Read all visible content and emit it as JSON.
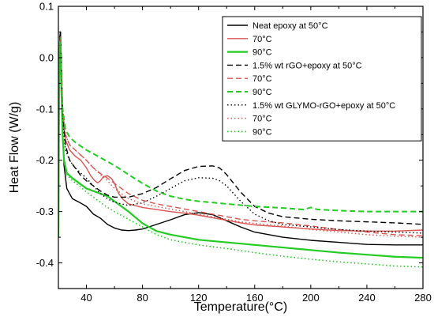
{
  "chart_data": {
    "type": "line",
    "title": "",
    "xlabel": "Temperature(°C)",
    "ylabel": "Heat Flow (W/g)",
    "xlim": [
      20,
      280
    ],
    "ylim": [
      -0.45,
      0.1
    ],
    "x_ticks": [
      40,
      80,
      120,
      160,
      200,
      240,
      280
    ],
    "x_tick_labels": [
      "40",
      "80",
      "120",
      "160",
      "200",
      "240",
      "280"
    ],
    "y_ticks": [
      0.1,
      0.0,
      -0.1,
      -0.2,
      -0.3,
      -0.4
    ],
    "y_tick_labels": [
      "0.1",
      "0.0",
      "-0.1",
      "-0.2",
      "-0.3",
      "-0.4"
    ],
    "grid": false,
    "legend_position": "top-right",
    "series": [
      {
        "name": "Neat epoxy at 50°C",
        "color": "#000000",
        "dash": "solid",
        "width": 1.4,
        "points": [
          [
            20,
            -0.35
          ],
          [
            20.5,
            -0.05
          ],
          [
            21,
            0.04
          ],
          [
            21.5,
            0.05
          ],
          [
            22,
            0.0
          ],
          [
            23,
            -0.14
          ],
          [
            24,
            -0.21
          ],
          [
            26,
            -0.255
          ],
          [
            30,
            -0.275
          ],
          [
            35,
            -0.282
          ],
          [
            40,
            -0.29
          ],
          [
            45,
            -0.305
          ],
          [
            50,
            -0.313
          ],
          [
            55,
            -0.325
          ],
          [
            60,
            -0.332
          ],
          [
            65,
            -0.336
          ],
          [
            70,
            -0.337
          ],
          [
            75,
            -0.336
          ],
          [
            80,
            -0.334
          ],
          [
            90,
            -0.325
          ],
          [
            100,
            -0.316
          ],
          [
            110,
            -0.306
          ],
          [
            120,
            -0.302
          ],
          [
            130,
            -0.306
          ],
          [
            140,
            -0.318
          ],
          [
            150,
            -0.33
          ],
          [
            160,
            -0.34
          ],
          [
            180,
            -0.35
          ],
          [
            200,
            -0.356
          ],
          [
            220,
            -0.36
          ],
          [
            240,
            -0.364
          ],
          [
            260,
            -0.365
          ],
          [
            280,
            -0.365
          ]
        ]
      },
      {
        "name": "70°C",
        "color": "#d9534f",
        "dash": "solid",
        "width": 1.4,
        "points": [
          [
            20,
            -0.35
          ],
          [
            20.5,
            -0.05
          ],
          [
            21,
            0.03
          ],
          [
            21.5,
            0.04
          ],
          [
            22,
            -0.02
          ],
          [
            23,
            -0.11
          ],
          [
            25,
            -0.16
          ],
          [
            28,
            -0.18
          ],
          [
            32,
            -0.192
          ],
          [
            36,
            -0.2
          ],
          [
            40,
            -0.215
          ],
          [
            43,
            -0.23
          ],
          [
            46,
            -0.24
          ],
          [
            48,
            -0.244
          ],
          [
            50,
            -0.24
          ],
          [
            52,
            -0.232
          ],
          [
            55,
            -0.23
          ],
          [
            58,
            -0.236
          ],
          [
            60,
            -0.245
          ],
          [
            63,
            -0.265
          ],
          [
            66,
            -0.276
          ],
          [
            70,
            -0.285
          ],
          [
            80,
            -0.292
          ],
          [
            90,
            -0.296
          ],
          [
            100,
            -0.3
          ],
          [
            110,
            -0.303
          ],
          [
            120,
            -0.307
          ],
          [
            130,
            -0.312
          ],
          [
            140,
            -0.317
          ],
          [
            150,
            -0.322
          ],
          [
            160,
            -0.326
          ],
          [
            180,
            -0.33
          ],
          [
            200,
            -0.334
          ],
          [
            220,
            -0.337
          ],
          [
            240,
            -0.338
          ],
          [
            260,
            -0.338
          ],
          [
            280,
            -0.336
          ]
        ]
      },
      {
        "name": "90°C",
        "color": "#22cc22",
        "dash": "solid",
        "width": 2.2,
        "points": [
          [
            20,
            -0.35
          ],
          [
            20.5,
            -0.05
          ],
          [
            21,
            0.02
          ],
          [
            21.5,
            0.03
          ],
          [
            22,
            -0.05
          ],
          [
            23,
            -0.15
          ],
          [
            24,
            -0.2
          ],
          [
            26,
            -0.225
          ],
          [
            30,
            -0.235
          ],
          [
            35,
            -0.245
          ],
          [
            40,
            -0.255
          ],
          [
            45,
            -0.26
          ],
          [
            50,
            -0.265
          ],
          [
            55,
            -0.27
          ],
          [
            60,
            -0.28
          ],
          [
            70,
            -0.3
          ],
          [
            80,
            -0.323
          ],
          [
            90,
            -0.338
          ],
          [
            100,
            -0.345
          ],
          [
            120,
            -0.355
          ],
          [
            140,
            -0.36
          ],
          [
            160,
            -0.365
          ],
          [
            180,
            -0.37
          ],
          [
            200,
            -0.375
          ],
          [
            220,
            -0.38
          ],
          [
            240,
            -0.384
          ],
          [
            260,
            -0.388
          ],
          [
            280,
            -0.39
          ]
        ]
      },
      {
        "name": "1.5% wt rGO+epoxy at 50°C",
        "color": "#000000",
        "dash": "7,4",
        "width": 1.4,
        "points": [
          [
            20,
            -0.35
          ],
          [
            20.5,
            -0.05
          ],
          [
            21,
            0.04
          ],
          [
            21.5,
            0.05
          ],
          [
            22,
            0.0
          ],
          [
            23,
            -0.1
          ],
          [
            25,
            -0.17
          ],
          [
            28,
            -0.2
          ],
          [
            32,
            -0.215
          ],
          [
            36,
            -0.23
          ],
          [
            40,
            -0.24
          ],
          [
            45,
            -0.25
          ],
          [
            50,
            -0.26
          ],
          [
            55,
            -0.268
          ],
          [
            60,
            -0.272
          ],
          [
            70,
            -0.272
          ],
          [
            80,
            -0.265
          ],
          [
            90,
            -0.253
          ],
          [
            100,
            -0.236
          ],
          [
            110,
            -0.22
          ],
          [
            120,
            -0.212
          ],
          [
            130,
            -0.211
          ],
          [
            135,
            -0.215
          ],
          [
            140,
            -0.228
          ],
          [
            150,
            -0.262
          ],
          [
            160,
            -0.29
          ],
          [
            170,
            -0.303
          ],
          [
            180,
            -0.31
          ],
          [
            200,
            -0.315
          ],
          [
            220,
            -0.318
          ],
          [
            240,
            -0.32
          ],
          [
            260,
            -0.322
          ],
          [
            280,
            -0.325
          ]
        ]
      },
      {
        "name": "70°C",
        "color": "#d9534f",
        "dash": "7,4",
        "width": 1.4,
        "points": [
          [
            20,
            -0.35
          ],
          [
            20.5,
            -0.05
          ],
          [
            21,
            0.03
          ],
          [
            21.5,
            0.04
          ],
          [
            22,
            -0.02
          ],
          [
            23,
            -0.1
          ],
          [
            25,
            -0.15
          ],
          [
            28,
            -0.17
          ],
          [
            32,
            -0.18
          ],
          [
            36,
            -0.19
          ],
          [
            40,
            -0.2
          ],
          [
            45,
            -0.215
          ],
          [
            50,
            -0.226
          ],
          [
            55,
            -0.235
          ],
          [
            60,
            -0.245
          ],
          [
            65,
            -0.255
          ],
          [
            70,
            -0.265
          ],
          [
            80,
            -0.278
          ],
          [
            90,
            -0.285
          ],
          [
            100,
            -0.29
          ],
          [
            110,
            -0.295
          ],
          [
            120,
            -0.3
          ],
          [
            130,
            -0.305
          ],
          [
            140,
            -0.31
          ],
          [
            150,
            -0.315
          ],
          [
            160,
            -0.318
          ],
          [
            180,
            -0.322
          ],
          [
            200,
            -0.328
          ],
          [
            220,
            -0.335
          ],
          [
            240,
            -0.34
          ],
          [
            260,
            -0.345
          ],
          [
            280,
            -0.347
          ]
        ]
      },
      {
        "name": "90°C",
        "color": "#22cc22",
        "dash": "7,4",
        "width": 2.0,
        "points": [
          [
            20,
            -0.35
          ],
          [
            20.5,
            -0.05
          ],
          [
            21,
            0.03
          ],
          [
            21.5,
            0.04
          ],
          [
            22,
            -0.02
          ],
          [
            23,
            -0.1
          ],
          [
            25,
            -0.14
          ],
          [
            28,
            -0.155
          ],
          [
            32,
            -0.165
          ],
          [
            40,
            -0.18
          ],
          [
            50,
            -0.195
          ],
          [
            60,
            -0.21
          ],
          [
            70,
            -0.228
          ],
          [
            80,
            -0.245
          ],
          [
            90,
            -0.26
          ],
          [
            100,
            -0.27
          ],
          [
            110,
            -0.276
          ],
          [
            120,
            -0.28
          ],
          [
            140,
            -0.285
          ],
          [
            160,
            -0.29
          ],
          [
            180,
            -0.293
          ],
          [
            195,
            -0.296
          ],
          [
            200,
            -0.292
          ],
          [
            205,
            -0.296
          ],
          [
            220,
            -0.298
          ],
          [
            240,
            -0.3
          ],
          [
            260,
            -0.3
          ],
          [
            280,
            -0.3
          ]
        ]
      },
      {
        "name": "1.5% wt GLYMO-rGO+epoxy at 50°C",
        "color": "#000000",
        "dash": "1.5,3",
        "width": 1.4,
        "points": [
          [
            20,
            -0.35
          ],
          [
            20.5,
            -0.05
          ],
          [
            21,
            0.03
          ],
          [
            21.5,
            0.04
          ],
          [
            22,
            -0.02
          ],
          [
            23,
            -0.12
          ],
          [
            25,
            -0.18
          ],
          [
            28,
            -0.2
          ],
          [
            32,
            -0.215
          ],
          [
            36,
            -0.225
          ],
          [
            40,
            -0.235
          ],
          [
            45,
            -0.25
          ],
          [
            50,
            -0.265
          ],
          [
            55,
            -0.275
          ],
          [
            60,
            -0.282
          ],
          [
            70,
            -0.288
          ],
          [
            80,
            -0.283
          ],
          [
            90,
            -0.27
          ],
          [
            100,
            -0.255
          ],
          [
            110,
            -0.24
          ],
          [
            120,
            -0.234
          ],
          [
            130,
            -0.235
          ],
          [
            135,
            -0.24
          ],
          [
            140,
            -0.25
          ],
          [
            150,
            -0.28
          ],
          [
            160,
            -0.305
          ],
          [
            170,
            -0.318
          ],
          [
            180,
            -0.325
          ],
          [
            200,
            -0.33
          ],
          [
            220,
            -0.335
          ],
          [
            240,
            -0.338
          ],
          [
            260,
            -0.34
          ],
          [
            280,
            -0.342
          ]
        ]
      },
      {
        "name": "70°C",
        "color": "#d9534f",
        "dash": "1.5,3",
        "width": 1.4,
        "points": [
          [
            20,
            -0.35
          ],
          [
            20.5,
            -0.05
          ],
          [
            21,
            0.03
          ],
          [
            21.5,
            0.04
          ],
          [
            22,
            -0.02
          ],
          [
            23,
            -0.1
          ],
          [
            25,
            -0.15
          ],
          [
            28,
            -0.17
          ],
          [
            32,
            -0.18
          ],
          [
            36,
            -0.19
          ],
          [
            40,
            -0.2
          ],
          [
            45,
            -0.215
          ],
          [
            50,
            -0.228
          ],
          [
            55,
            -0.24
          ],
          [
            60,
            -0.255
          ],
          [
            65,
            -0.265
          ],
          [
            70,
            -0.275
          ],
          [
            80,
            -0.285
          ],
          [
            90,
            -0.29
          ],
          [
            100,
            -0.295
          ],
          [
            110,
            -0.3
          ],
          [
            120,
            -0.305
          ],
          [
            130,
            -0.31
          ],
          [
            140,
            -0.315
          ],
          [
            150,
            -0.32
          ],
          [
            160,
            -0.323
          ],
          [
            180,
            -0.328
          ],
          [
            200,
            -0.335
          ],
          [
            220,
            -0.34
          ],
          [
            240,
            -0.345
          ],
          [
            260,
            -0.348
          ],
          [
            280,
            -0.35
          ]
        ]
      },
      {
        "name": "90°C",
        "color": "#22cc22",
        "dash": "1.5,3",
        "width": 1.6,
        "points": [
          [
            20,
            -0.35
          ],
          [
            20.5,
            -0.05
          ],
          [
            21,
            0.02
          ],
          [
            21.5,
            0.03
          ],
          [
            22,
            -0.05
          ],
          [
            23,
            -0.15
          ],
          [
            24,
            -0.2
          ],
          [
            26,
            -0.228
          ],
          [
            30,
            -0.24
          ],
          [
            35,
            -0.25
          ],
          [
            40,
            -0.262
          ],
          [
            45,
            -0.272
          ],
          [
            50,
            -0.282
          ],
          [
            55,
            -0.292
          ],
          [
            60,
            -0.3
          ],
          [
            70,
            -0.315
          ],
          [
            80,
            -0.33
          ],
          [
            90,
            -0.345
          ],
          [
            100,
            -0.355
          ],
          [
            120,
            -0.365
          ],
          [
            140,
            -0.372
          ],
          [
            160,
            -0.38
          ],
          [
            180,
            -0.387
          ],
          [
            200,
            -0.393
          ],
          [
            220,
            -0.398
          ],
          [
            240,
            -0.402
          ],
          [
            260,
            -0.406
          ],
          [
            280,
            -0.408
          ]
        ]
      }
    ]
  }
}
